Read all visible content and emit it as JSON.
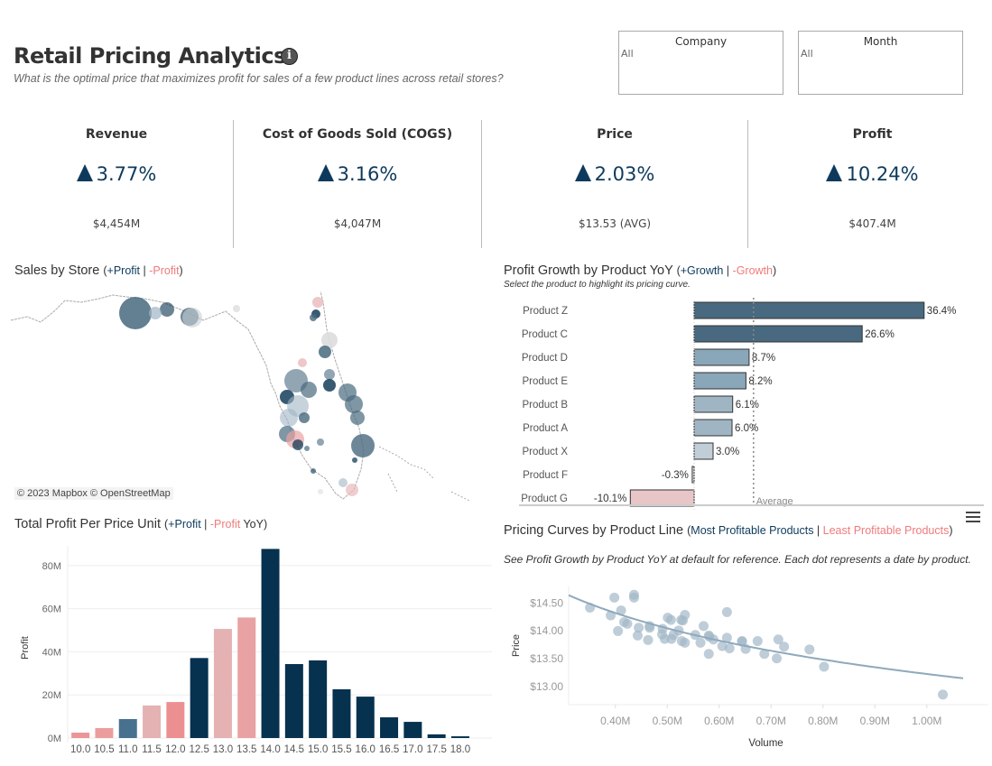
{
  "header": {
    "title": "Retail Pricing Analytics",
    "subtitle": "What is the optimal price that maximizes profit for sales of a few product lines across retail stores?",
    "info_icon": "info-icon"
  },
  "filters": [
    {
      "label": "Company",
      "value": "All"
    },
    {
      "label": "Month",
      "value": "All"
    }
  ],
  "kpis": [
    {
      "title": "Revenue",
      "change": "3.77%",
      "value": "$4,454M",
      "trend": "up"
    },
    {
      "title": "Cost of Goods Sold (COGS)",
      "change": "3.16%",
      "value": "$4,047M",
      "trend": "up"
    },
    {
      "title": "Price",
      "change": "2.03%",
      "value": "$13.53 (AVG)",
      "trend": "up"
    },
    {
      "title": "Profit",
      "change": "10.24%",
      "value": "$407.4M",
      "trend": "up"
    }
  ],
  "colors": {
    "positive": "#0d3a5c",
    "negative": "#f07b7b",
    "dark_bar": "#06314f",
    "scatter": "#a3b8c8"
  },
  "map": {
    "title": "Sales by Store",
    "legend_open": "(",
    "legend_pos": "+Profit",
    "legend_sep": " | ",
    "legend_neg": "-Profit",
    "legend_close": ")",
    "attribution": "© 2023 Mapbox © OpenStreetMap"
  },
  "growth": {
    "title": "Profit Growth by Product YoY",
    "legend_open": "(",
    "legend_pos": "+Growth",
    "legend_sep": " | ",
    "legend_neg": "-Growth",
    "legend_close": ")",
    "subtitle": "Select the product to highlight its pricing curve.",
    "average_label": "Average"
  },
  "profit_chart": {
    "title": "Total Profit Per Price Unit",
    "legend_open": "(",
    "legend_pos": "+Profit",
    "legend_sep": " | ",
    "legend_neg": "-Profit",
    "legend_suffix": " YoY)"
  },
  "pricing": {
    "title": "Pricing Curves by Product Line",
    "legend_open": "(",
    "legend_pos": "Most Profitable Products",
    "legend_sep": " | ",
    "legend_neg": "Least Profitable Products",
    "legend_close": ")",
    "subtitle": "See Profit Growth by Product YoY at default for reference. Each dot represents a date by product.",
    "menu_icon": "hamburger-menu-icon"
  },
  "chart_data": [
    {
      "type": "bar",
      "orientation": "horizontal",
      "categories": [
        "Product Z",
        "Product C",
        "Product D",
        "Product E",
        "Product B",
        "Product A",
        "Product X",
        "Product F",
        "Product G"
      ],
      "values": [
        36.4,
        26.6,
        8.7,
        8.2,
        6.1,
        6.0,
        3.0,
        -0.3,
        -10.1
      ],
      "labels": [
        "36.4%",
        "26.6%",
        "8.7%",
        "8.2%",
        "6.1%",
        "6.0%",
        "3.0%",
        "-0.3%",
        "-10.1%"
      ],
      "colors": [
        "#48697f",
        "#48697f",
        "#8aa6b9",
        "#8aa6b9",
        "#a0b5c4",
        "#a0b5c4",
        "#c1ced7",
        "#dde3e8",
        "#e8c6c8"
      ],
      "reference_line": "average",
      "xlim": [
        -13,
        38
      ]
    },
    {
      "type": "bar",
      "categories": [
        "10.0",
        "10.5",
        "11.0",
        "11.5",
        "12.0",
        "12.5",
        "13.0",
        "13.5",
        "14.0",
        "14.5",
        "15.0",
        "15.5",
        "16.0",
        "16.5",
        "17.0",
        "17.5",
        "18.0"
      ],
      "values": [
        2.5,
        4.6,
        8.8,
        15.1,
        16.7,
        37.1,
        50.6,
        55.9,
        87.7,
        34.3,
        36.0,
        22.6,
        19.2,
        9.6,
        7.5,
        1.7,
        0.8
      ],
      "colors": [
        "#ec9596",
        "#eb9d9d",
        "#48718f",
        "#e5b2b3",
        "#ec8f90",
        "#06314f",
        "#e5b2b3",
        "#e8a2a3",
        "#06314f",
        "#06314f",
        "#06314f",
        "#06314f",
        "#06314f",
        "#06314f",
        "#06314f",
        "#06314f",
        "#06314f"
      ],
      "ylabel": "Profit",
      "yticks": [
        "0M",
        "20M",
        "40M",
        "60M",
        "80M"
      ],
      "ytick_values": [
        0,
        20,
        40,
        60,
        80
      ],
      "ylim": [
        0,
        90
      ],
      "grid": true
    },
    {
      "type": "scatter",
      "xlabel": "Volume",
      "ylabel": "Price",
      "xticks": [
        "0.40M",
        "0.50M",
        "0.60M",
        "0.70M",
        "0.80M",
        "0.90M",
        "1.00M"
      ],
      "xtick_values": [
        0.4,
        0.5,
        0.6,
        0.7,
        0.8,
        0.9,
        1.0
      ],
      "yticks": [
        "$13.00",
        "$13.50",
        "$14.00",
        "$14.50"
      ],
      "ytick_values": [
        13.0,
        13.5,
        14.0,
        14.5
      ],
      "xlim": [
        0.31,
        1.07
      ],
      "ylim": [
        12.66,
        14.78
      ],
      "trendline": {
        "type": "power",
        "a": 13.21,
        "b": -0.0868
      },
      "points": [
        [
          0.351,
          14.4
        ],
        [
          0.398,
          14.58
        ],
        [
          0.391,
          14.26
        ],
        [
          0.405,
          13.98
        ],
        [
          0.411,
          14.35
        ],
        [
          0.417,
          14.14
        ],
        [
          0.423,
          14.11
        ],
        [
          0.436,
          14.63
        ],
        [
          0.436,
          14.58
        ],
        [
          0.445,
          14.04
        ],
        [
          0.443,
          13.9
        ],
        [
          0.463,
          13.82
        ],
        [
          0.466,
          14.07
        ],
        [
          0.466,
          14.04
        ],
        [
          0.491,
          14.02
        ],
        [
          0.49,
          13.92
        ],
        [
          0.495,
          13.84
        ],
        [
          0.501,
          14.22
        ],
        [
          0.507,
          14.18
        ],
        [
          0.508,
          13.84
        ],
        [
          0.512,
          13.91
        ],
        [
          0.522,
          13.99
        ],
        [
          0.527,
          14.18
        ],
        [
          0.53,
          14.17
        ],
        [
          0.534,
          14.27
        ],
        [
          0.528,
          13.8
        ],
        [
          0.534,
          13.77
        ],
        [
          0.554,
          13.91
        ],
        [
          0.564,
          13.77
        ],
        [
          0.57,
          14.07
        ],
        [
          0.58,
          13.9
        ],
        [
          0.581,
          13.88
        ],
        [
          0.589,
          13.83
        ],
        [
          0.58,
          13.57
        ],
        [
          0.606,
          13.71
        ],
        [
          0.615,
          14.32
        ],
        [
          0.615,
          13.86
        ],
        [
          0.62,
          13.67
        ],
        [
          0.644,
          13.79
        ],
        [
          0.644,
          13.8
        ],
        [
          0.651,
          13.66
        ],
        [
          0.674,
          13.8
        ],
        [
          0.687,
          13.57
        ],
        [
          0.711,
          13.49
        ],
        [
          0.714,
          13.83
        ],
        [
          0.725,
          13.7
        ],
        [
          0.774,
          13.65
        ],
        [
          0.802,
          13.34
        ],
        [
          1.031,
          12.84
        ]
      ]
    }
  ]
}
